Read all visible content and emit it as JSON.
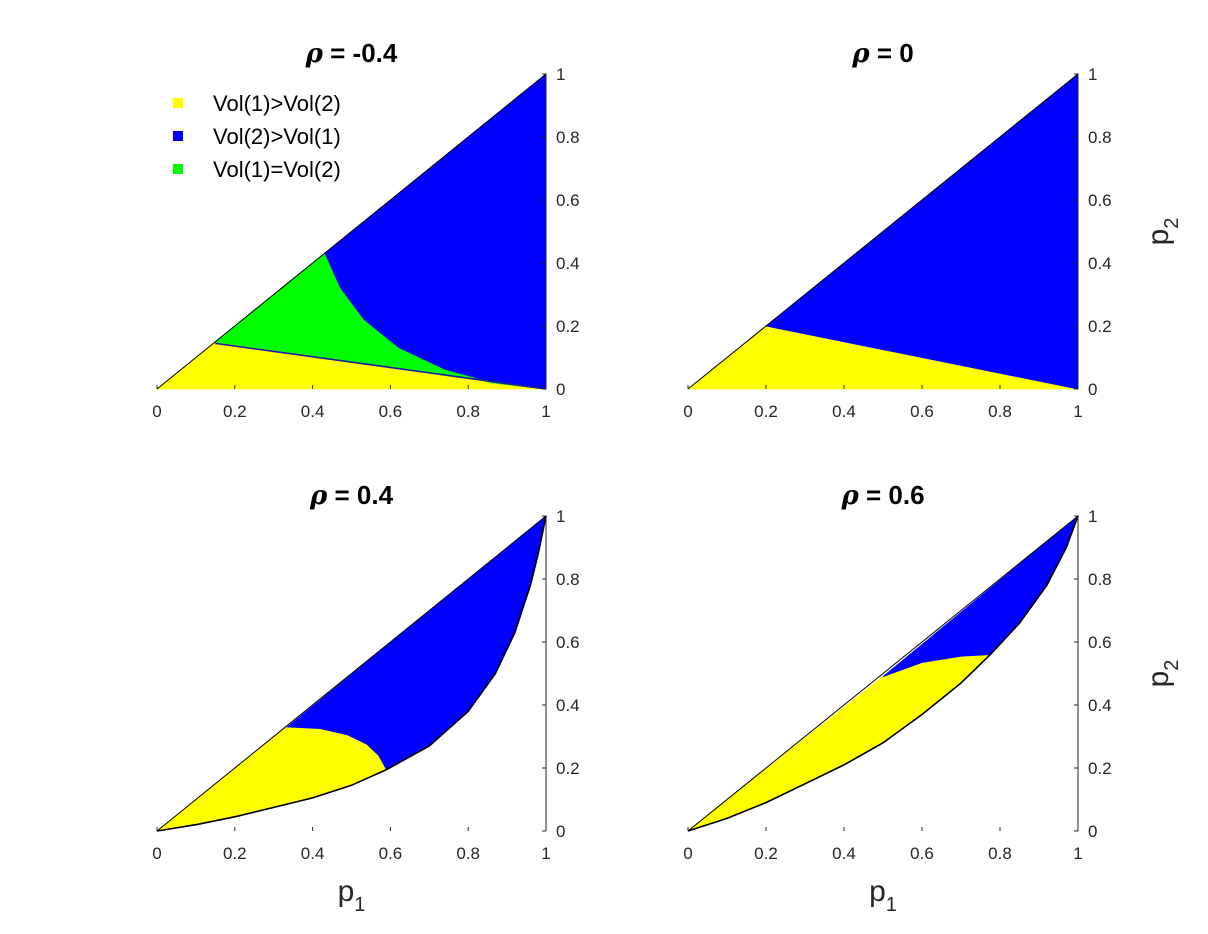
{
  "chart_data": [
    {
      "type": "area",
      "title_symbol": "ρ",
      "title_value": " = -0.4",
      "xlim": [
        0,
        1
      ],
      "ylim": [
        0,
        1
      ],
      "x_ticks": [
        "0",
        "0.2",
        "0.4",
        "0.6",
        "0.8",
        "1"
      ],
      "y_ticks": [
        "0",
        "0.2",
        "0.4",
        "0.6",
        "0.8",
        "1"
      ],
      "xlabel": "",
      "ylabel": "",
      "legend": [
        {
          "label": "Vol(1)>Vol(2)",
          "color": "#ffff00"
        },
        {
          "label": "Vol(2)>Vol(1)",
          "color": "#0000ff"
        },
        {
          "label": "Vol(1)=Vol(2)",
          "color": "#00ff00"
        }
      ],
      "legend_position": "top-left",
      "regions": [
        {
          "name": "Vol(1)>Vol(2)",
          "color": "#ffff00",
          "points": [
            [
              0,
              0
            ],
            [
              1,
              0
            ],
            [
              0.15,
              0.15
            ]
          ]
        },
        {
          "name": "Vol(2)>Vol(1)",
          "color": "#0000ff",
          "points": [
            [
              0.43,
              0.43
            ],
            [
              1,
              1
            ],
            [
              1,
              0
            ],
            [
              0.86,
              0.02
            ],
            [
              0.74,
              0.06
            ],
            [
              0.62,
              0.13
            ],
            [
              0.53,
              0.22
            ],
            [
              0.47,
              0.32
            ]
          ]
        },
        {
          "name": "Vol(1)=Vol(2)",
          "color": "#00ff00",
          "points": [
            [
              0.15,
              0.15
            ],
            [
              0.43,
              0.43
            ],
            [
              0.47,
              0.32
            ],
            [
              0.53,
              0.22
            ],
            [
              0.62,
              0.13
            ],
            [
              0.74,
              0.06
            ],
            [
              0.86,
              0.02
            ],
            [
              1,
              0
            ]
          ]
        }
      ],
      "lines": [
        {
          "color": "#1a1aa0",
          "points": [
            [
              0.15,
              0.145
            ],
            [
              1,
              0
            ]
          ]
        }
      ]
    },
    {
      "type": "area",
      "title_symbol": "ρ",
      "title_value": " = 0",
      "xlim": [
        0,
        1
      ],
      "ylim": [
        0,
        1
      ],
      "x_ticks": [
        "0",
        "0.2",
        "0.4",
        "0.6",
        "0.8",
        "1"
      ],
      "y_ticks": [
        "0",
        "0.2",
        "0.4",
        "0.6",
        "0.8",
        "1"
      ],
      "xlabel": "",
      "ylabel": "p",
      "ylabel_sub": "2",
      "regions": [
        {
          "name": "Vol(1)>Vol(2)",
          "color": "#ffff00",
          "points": [
            [
              0,
              0
            ],
            [
              1,
              0
            ],
            [
              0.2,
              0.2
            ]
          ]
        },
        {
          "name": "Vol(2)>Vol(1)",
          "color": "#0000ff",
          "points": [
            [
              0.2,
              0.2
            ],
            [
              1,
              1
            ],
            [
              1,
              0
            ]
          ]
        }
      ],
      "lines": []
    },
    {
      "type": "area",
      "title_symbol": "ρ",
      "title_value": " = 0.4",
      "xlim": [
        0,
        1
      ],
      "ylim": [
        0,
        1
      ],
      "x_ticks": [
        "0",
        "0.2",
        "0.4",
        "0.6",
        "0.8",
        "1"
      ],
      "y_ticks": [
        "0",
        "0.2",
        "0.4",
        "0.6",
        "0.8",
        "1"
      ],
      "xlabel": "p",
      "xlabel_sub": "1",
      "ylabel": "",
      "regions": [
        {
          "name": "Vol(1)>Vol(2)",
          "color": "#ffff00",
          "points": [
            [
              0,
              0
            ],
            [
              0.1,
              0.02
            ],
            [
              0.2,
              0.045
            ],
            [
              0.3,
              0.075
            ],
            [
              0.4,
              0.105
            ],
            [
              0.5,
              0.145
            ],
            [
              0.59,
              0.195
            ],
            [
              0.57,
              0.24
            ],
            [
              0.54,
              0.275
            ],
            [
              0.49,
              0.305
            ],
            [
              0.42,
              0.325
            ],
            [
              0.335,
              0.33
            ]
          ]
        },
        {
          "name": "Vol(2)>Vol(1)",
          "color": "#0000ff",
          "points": [
            [
              0.335,
              0.33
            ],
            [
              0.42,
              0.325
            ],
            [
              0.49,
              0.305
            ],
            [
              0.54,
              0.275
            ],
            [
              0.57,
              0.24
            ],
            [
              0.59,
              0.195
            ],
            [
              0.7,
              0.27
            ],
            [
              0.8,
              0.38
            ],
            [
              0.87,
              0.5
            ],
            [
              0.92,
              0.63
            ],
            [
              0.96,
              0.78
            ],
            [
              0.98,
              0.88
            ],
            [
              1,
              1
            ]
          ]
        }
      ],
      "lines": [
        {
          "color": "#000000",
          "points": [
            [
              0,
              0
            ],
            [
              0.1,
              0.02
            ],
            [
              0.2,
              0.045
            ],
            [
              0.3,
              0.075
            ],
            [
              0.4,
              0.105
            ],
            [
              0.5,
              0.145
            ],
            [
              0.59,
              0.195
            ],
            [
              0.7,
              0.27
            ],
            [
              0.8,
              0.38
            ],
            [
              0.87,
              0.5
            ],
            [
              0.92,
              0.63
            ],
            [
              0.96,
              0.78
            ],
            [
              0.98,
              0.88
            ],
            [
              1,
              1
            ]
          ]
        }
      ]
    },
    {
      "type": "area",
      "title_symbol": "ρ",
      "title_value": " = 0.6",
      "xlim": [
        0,
        1
      ],
      "ylim": [
        0,
        1
      ],
      "x_ticks": [
        "0",
        "0.2",
        "0.4",
        "0.6",
        "0.8",
        "1"
      ],
      "y_ticks": [
        "0",
        "0.2",
        "0.4",
        "0.6",
        "0.8",
        "1"
      ],
      "xlabel": "p",
      "xlabel_sub": "1",
      "ylabel": "p",
      "ylabel_sub": "2",
      "regions": [
        {
          "name": "Vol(1)>Vol(2)",
          "color": "#ffff00",
          "points": [
            [
              0,
              0
            ],
            [
              0.1,
              0.04
            ],
            [
              0.2,
              0.09
            ],
            [
              0.3,
              0.15
            ],
            [
              0.4,
              0.21
            ],
            [
              0.5,
              0.28
            ],
            [
              0.6,
              0.37
            ],
            [
              0.7,
              0.47
            ],
            [
              0.775,
              0.56
            ],
            [
              0.7,
              0.555
            ],
            [
              0.6,
              0.535
            ],
            [
              0.5,
              0.49
            ]
          ]
        },
        {
          "name": "Vol(2)>Vol(1)",
          "color": "#0000ff",
          "points": [
            [
              0.5,
              0.49
            ],
            [
              0.6,
              0.535
            ],
            [
              0.7,
              0.555
            ],
            [
              0.775,
              0.56
            ],
            [
              0.85,
              0.66
            ],
            [
              0.92,
              0.78
            ],
            [
              0.97,
              0.9
            ],
            [
              1,
              1
            ]
          ]
        }
      ],
      "lines": [
        {
          "color": "#000000",
          "points": [
            [
              0,
              0
            ],
            [
              0.1,
              0.04
            ],
            [
              0.2,
              0.09
            ],
            [
              0.3,
              0.15
            ],
            [
              0.4,
              0.21
            ],
            [
              0.5,
              0.28
            ],
            [
              0.6,
              0.37
            ],
            [
              0.7,
              0.47
            ],
            [
              0.775,
              0.56
            ],
            [
              0.85,
              0.66
            ],
            [
              0.92,
              0.78
            ],
            [
              0.97,
              0.9
            ],
            [
              1,
              1
            ]
          ]
        }
      ]
    }
  ]
}
